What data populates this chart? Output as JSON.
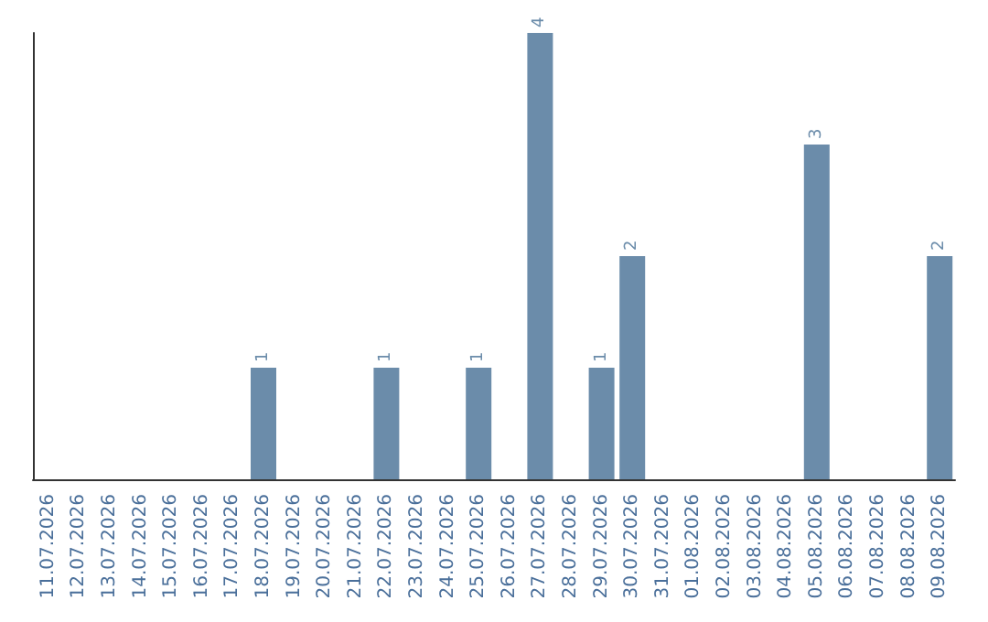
{
  "chart_data": {
    "type": "bar",
    "categories": [
      "11.07.2026",
      "12.07.2026",
      "13.07.2026",
      "14.07.2026",
      "15.07.2026",
      "16.07.2026",
      "17.07.2026",
      "18.07.2026",
      "19.07.2026",
      "20.07.2026",
      "21.07.2026",
      "22.07.2026",
      "23.07.2026",
      "24.07.2026",
      "25.07.2026",
      "26.07.2026",
      "27.07.2026",
      "28.07.2026",
      "29.07.2026",
      "30.07.2026",
      "31.07.2026",
      "01.08.2026",
      "02.08.2026",
      "03.08.2026",
      "04.08.2026",
      "05.08.2026",
      "06.08.2026",
      "07.08.2026",
      "08.08.2026",
      "09.08.2026"
    ],
    "values": [
      0,
      0,
      0,
      0,
      0,
      0,
      0,
      1,
      0,
      0,
      0,
      1,
      0,
      0,
      1,
      0,
      4,
      0,
      1,
      2,
      0,
      0,
      0,
      0,
      0,
      3,
      0,
      0,
      0,
      2
    ],
    "value_labels": [
      null,
      null,
      null,
      null,
      null,
      null,
      null,
      "1",
      null,
      null,
      null,
      "1",
      null,
      null,
      "1",
      null,
      "4",
      null,
      "1",
      "2",
      null,
      null,
      null,
      null,
      null,
      "3",
      null,
      null,
      null,
      "2"
    ],
    "color": "#6b8caa",
    "tick_labels": "x"
  }
}
